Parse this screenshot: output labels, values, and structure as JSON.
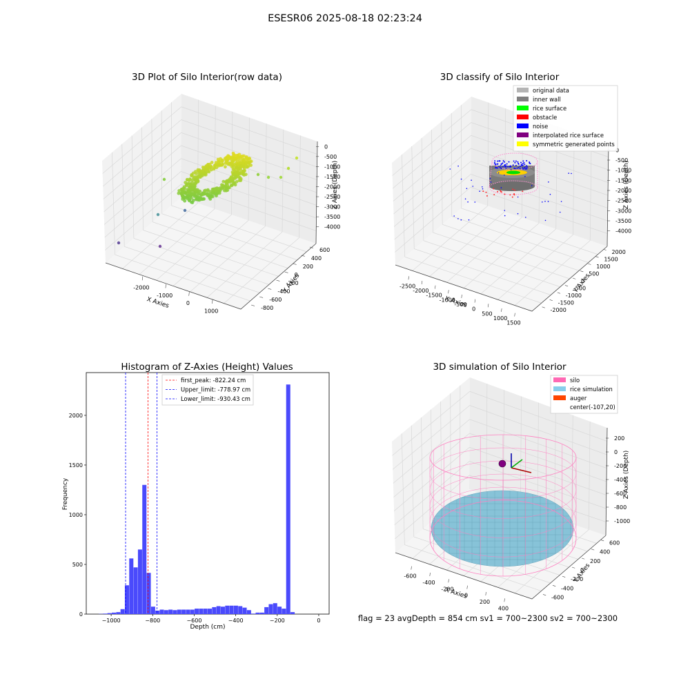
{
  "suptitle": "ESESR06 2025-08-18 02:23:24",
  "status_line": "flag = 23  avgDepth = 854 cm  sv1 = 700~2300  sv2 = 700~2300",
  "panels": {
    "raw": {
      "title": "3D Plot of Silo Interior(row data)",
      "xlabel": "X Axies",
      "ylabel": "Y Axies",
      "zlabel": "Z Axies (Depth)",
      "xticks": [
        "-2000",
        "-1000",
        "0",
        "1000"
      ],
      "yticks": [
        "600",
        "400",
        "200",
        "0",
        "-200",
        "-400",
        "-600",
        "-800"
      ],
      "zticks": [
        "0",
        "-500",
        "-1000",
        "-1500",
        "-2000",
        "-2500",
        "-3000",
        "-3500",
        "-4000"
      ]
    },
    "classify": {
      "title": "3D classify of Silo Interior",
      "xlabel": "X Axies",
      "ylabel": "Y Axies",
      "zlabel": "Z Axies (Depth)",
      "xticks": [
        "-2500",
        "-2000",
        "-1500",
        "-1000",
        "-500",
        "0",
        "500",
        "1000",
        "1500"
      ],
      "yticks": [
        "2000",
        "1500",
        "1000",
        "500",
        "0",
        "-500",
        "-1000",
        "-1500",
        "-2000"
      ],
      "zticks": [
        "0",
        "-500",
        "-1000",
        "-1500",
        "-2000",
        "-2500",
        "-3000",
        "-3500",
        "-4000"
      ]
    },
    "simulation": {
      "title": "3D simulation of Silo Interior",
      "xlabel": "X Axies",
      "ylabel": "Y Axies",
      "zlabel": "Z Axies (Depth)",
      "xticks": [
        "-600",
        "-400",
        "-200",
        "0",
        "200",
        "400"
      ],
      "yticks": [
        "600",
        "400",
        "200",
        "0",
        "-200",
        "-400",
        "-600"
      ],
      "zticks": [
        "200",
        "0",
        "-200",
        "-400",
        "-600",
        "-800",
        "-1000"
      ]
    }
  },
  "legends": {
    "classify": [
      {
        "label": "original data",
        "color": "#b4b4b4"
      },
      {
        "label": "inner wall",
        "color": "#808080"
      },
      {
        "label": "rice surface",
        "color": "#00ff00"
      },
      {
        "label": "obstacle",
        "color": "#ff0000"
      },
      {
        "label": "noise",
        "color": "#0000ff"
      },
      {
        "label": "interpolated rice surface",
        "color": "#800080"
      },
      {
        "label": "symmetric generated points",
        "color": "#ffff00"
      }
    ],
    "simulation": [
      {
        "label": "silo",
        "color": "#ff69b4"
      },
      {
        "label": "rice simulation",
        "color": "#87ceeb"
      },
      {
        "label": "auger",
        "color": "#ff4500"
      },
      {
        "label": "center(-107,20)",
        "color": ""
      }
    ]
  },
  "colors": {
    "hist_bar": "#4a4afc",
    "peak_line": "#ff0000",
    "limit_line": "#0000ff",
    "silo_wire": "#ff7fc0",
    "rice_fill": "#87c3d8",
    "axis_pane": "#f2f2f2",
    "grid": "#d8d8d8"
  },
  "chart_data": [
    {
      "type": "histogram",
      "title": "Histogram of Z-Axies (Height) Values",
      "xlabel": "Depth (cm)",
      "ylabel": "Frequency",
      "xlim": [
        -1120,
        50
      ],
      "ylim": [
        0,
        2430
      ],
      "xticks": [
        -1000,
        -800,
        -600,
        -400,
        -200,
        0
      ],
      "yticks": [
        0,
        500,
        1000,
        1500,
        2000
      ],
      "bin_start": -1060,
      "bin_width": 21,
      "counts": [
        2,
        5,
        10,
        15,
        20,
        50,
        290,
        560,
        470,
        650,
        1300,
        415,
        75,
        35,
        45,
        40,
        45,
        40,
        45,
        45,
        45,
        45,
        55,
        55,
        55,
        55,
        70,
        80,
        75,
        85,
        85,
        85,
        80,
        65,
        40,
        5,
        15,
        15,
        70,
        100,
        110,
        75,
        55,
        2310,
        20
      ],
      "vlines": [
        {
          "label": "first_peak: -822.24 cm",
          "x": -822.24,
          "color": "#ff0000"
        },
        {
          "label": "Upper_limit: -778.97 cm",
          "x": -778.97,
          "color": "#0000ff"
        },
        {
          "label": "Lower_limit: -930.43 cm",
          "x": -930.43,
          "color": "#0000ff"
        }
      ]
    }
  ]
}
